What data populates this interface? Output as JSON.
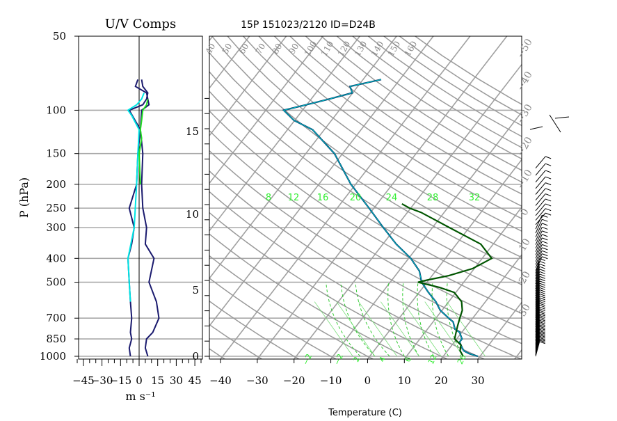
{
  "chart_data": [
    {
      "type": "line",
      "title": "U/V Comps",
      "xlabel": "m s⁻¹",
      "ylabel": "P (hPa)",
      "x_ticks": [
        "-45",
        "-30",
        "-15",
        "0",
        "15",
        "30",
        "45"
      ],
      "y_ticks": [
        "50",
        "100",
        "150",
        "200",
        "250",
        "300",
        "400",
        "500",
        "700",
        "850",
        "1000"
      ],
      "y_tick_values": [
        50,
        100,
        150,
        200,
        250,
        300,
        400,
        500,
        700,
        850,
        1000
      ],
      "xlim": [
        -50,
        50
      ],
      "ylim": [
        1000,
        50
      ],
      "y_scale": "log",
      "grid": true,
      "series": [
        {
          "color": "#1a1a6e",
          "p": [
            1000,
            925,
            850,
            800,
            700,
            600,
            500,
            400,
            350,
            300,
            250,
            200,
            150,
            120,
            100,
            95,
            90,
            85,
            80,
            75
          ],
          "values": [
            -7,
            -8,
            -6,
            -7,
            -6,
            -7,
            -8,
            -9,
            -6,
            -4,
            -8,
            -2,
            -1,
            1,
            -8,
            3,
            6,
            7,
            3,
            2
          ]
        },
        {
          "color": "#1a1a6e",
          "p": [
            1000,
            925,
            850,
            800,
            700,
            600,
            500,
            400,
            350,
            300,
            250,
            200,
            150,
            120,
            100,
            95,
            90,
            85,
            80,
            75
          ],
          "values": [
            7,
            5,
            6,
            11,
            16,
            14,
            8,
            12,
            5,
            6,
            3,
            2,
            3,
            1,
            2,
            8,
            7,
            6,
            -3,
            -1
          ]
        },
        {
          "color": "#00e5e5",
          "p": [
            600,
            500,
            400,
            300,
            200,
            150,
            120,
            105,
            100,
            95,
            90,
            85
          ],
          "values": [
            -7,
            -8,
            -9,
            -4,
            -2,
            -1,
            0,
            -6,
            -9,
            -2,
            2,
            4
          ]
        },
        {
          "color": "#22dd22",
          "p": [
            200,
            150,
            130,
            120,
            110,
            100,
            95,
            90
          ],
          "values": [
            1,
            0,
            2,
            1,
            2,
            3,
            6,
            7
          ]
        }
      ]
    },
    {
      "type": "line",
      "title": "15P 151023/2120 ID=D24B",
      "xlabel": "Temperature (C)",
      "x_ticks": [
        "-40",
        "-30",
        "-20",
        "-10",
        "0",
        "10",
        "20",
        "30"
      ],
      "xlim": [
        -43,
        40
      ],
      "y_ticks": [
        "0",
        "5",
        "10",
        "15"
      ],
      "y_unit": "height (km)",
      "ylim": [
        1000,
        50
      ],
      "y_scale": "log",
      "grid": true,
      "top_labels": [
        "40",
        "50",
        "60",
        "70",
        "80",
        "90",
        "100",
        "110",
        "120",
        "130",
        "140",
        "150",
        "160"
      ],
      "right_labels": [
        "-50",
        "-40",
        "-30",
        "-20",
        "-10",
        "0",
        "10",
        "20",
        "30"
      ],
      "mixing_ratio_labels_top": [
        "8",
        "12",
        "16",
        "20",
        "24",
        "28",
        "32"
      ],
      "bottom_green_labels": [
        "-2",
        "-2",
        "2",
        "4",
        "6",
        "12",
        "26"
      ],
      "series": [
        {
          "name": "temperature",
          "color": "#003366",
          "p": [
            1000,
            975,
            950,
            925,
            900,
            875,
            850,
            825,
            800,
            775,
            750,
            725,
            700,
            650,
            600,
            550,
            500,
            450,
            400,
            350,
            300,
            250,
            200,
            150,
            120,
            110,
            100,
            95,
            90,
            85,
            80,
            75
          ],
          "values": [
            30,
            27,
            25,
            24,
            23,
            22,
            22,
            21,
            20,
            18,
            17,
            16,
            14,
            10,
            7,
            3,
            -1,
            -4,
            -9,
            -16,
            -23,
            -31,
            -41,
            -52,
            -63,
            -70,
            -75,
            -70,
            -65,
            -60,
            -62,
            -55
          ]
        },
        {
          "name": "dewpoint",
          "color": "#005500",
          "p": [
            1000,
            950,
            900,
            850,
            800,
            750,
            700,
            650,
            600,
            550,
            525,
            500,
            490,
            470,
            440,
            400,
            350,
            300,
            260,
            250,
            240
          ],
          "values": [
            26,
            24,
            23,
            20,
            19,
            18,
            17,
            16,
            14,
            10,
            5,
            -2,
            0,
            5,
            10,
            13,
            7,
            -5,
            -16,
            -20,
            -23
          ]
        }
      ],
      "wind_barbs": true
    }
  ]
}
